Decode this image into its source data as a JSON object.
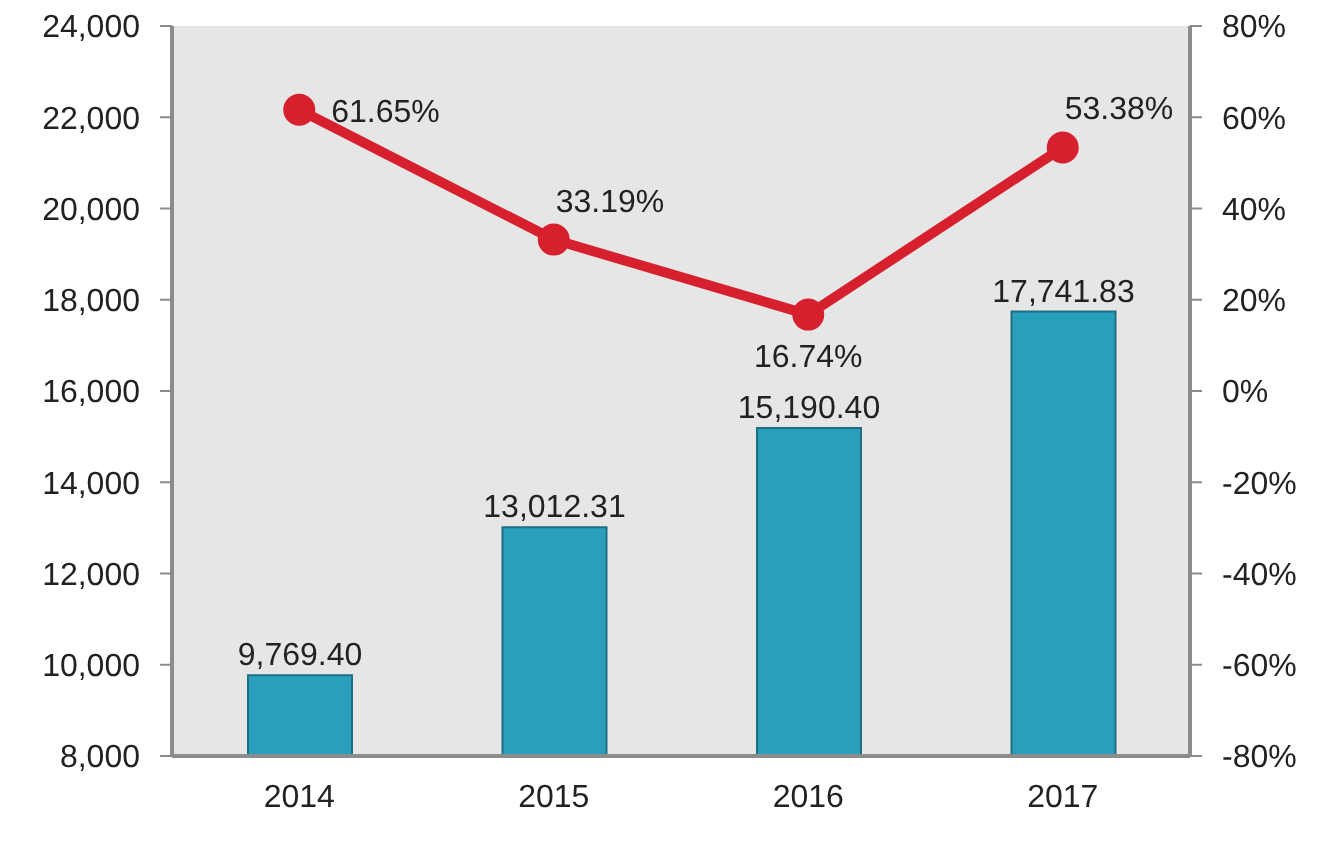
{
  "chart_data": {
    "type": "bar",
    "categories": [
      "2014",
      "2015",
      "2016",
      "2017"
    ],
    "series": [
      {
        "color": "#2a9fbc",
        "values": [
          9769.4,
          13012.31,
          15190.4,
          17741.83
        ],
        "value_labels": [
          "9,769.40",
          "13,012.31",
          "15,190.40",
          "17,741.83"
        ]
      },
      {
        "type": "line",
        "axis": "y2",
        "color": "#d7202e",
        "values": [
          61.65,
          33.19,
          16.74,
          53.38
        ],
        "value_labels": [
          "61.65%",
          "33.19%",
          "16.74%",
          "53.38%"
        ]
      }
    ],
    "ylim": [
      8000,
      24000
    ],
    "yticks": [
      {
        "value": 8000,
        "label": "8,000"
      },
      {
        "value": 10000,
        "label": "10,000"
      },
      {
        "value": 12000,
        "label": "12,000"
      },
      {
        "value": 14000,
        "label": "14,000"
      },
      {
        "value": 16000,
        "label": "16,000"
      },
      {
        "value": 18000,
        "label": "18,000"
      },
      {
        "value": 20000,
        "label": "20,000"
      },
      {
        "value": 22000,
        "label": "22,000"
      },
      {
        "value": 24000,
        "label": "24,000"
      }
    ],
    "y2lim": [
      -80,
      80
    ],
    "y2ticks": [
      {
        "value": -80,
        "label": "-80%"
      },
      {
        "value": -60,
        "label": "-60%"
      },
      {
        "value": -40,
        "label": "-40%"
      },
      {
        "value": -20,
        "label": "-20%"
      },
      {
        "value": 0,
        "label": "0%"
      },
      {
        "value": 20,
        "label": "20%"
      },
      {
        "value": 40,
        "label": "40%"
      },
      {
        "value": 60,
        "label": "60%"
      },
      {
        "value": 80,
        "label": "80%"
      }
    ],
    "marker": "circle",
    "line_style": "solid"
  }
}
